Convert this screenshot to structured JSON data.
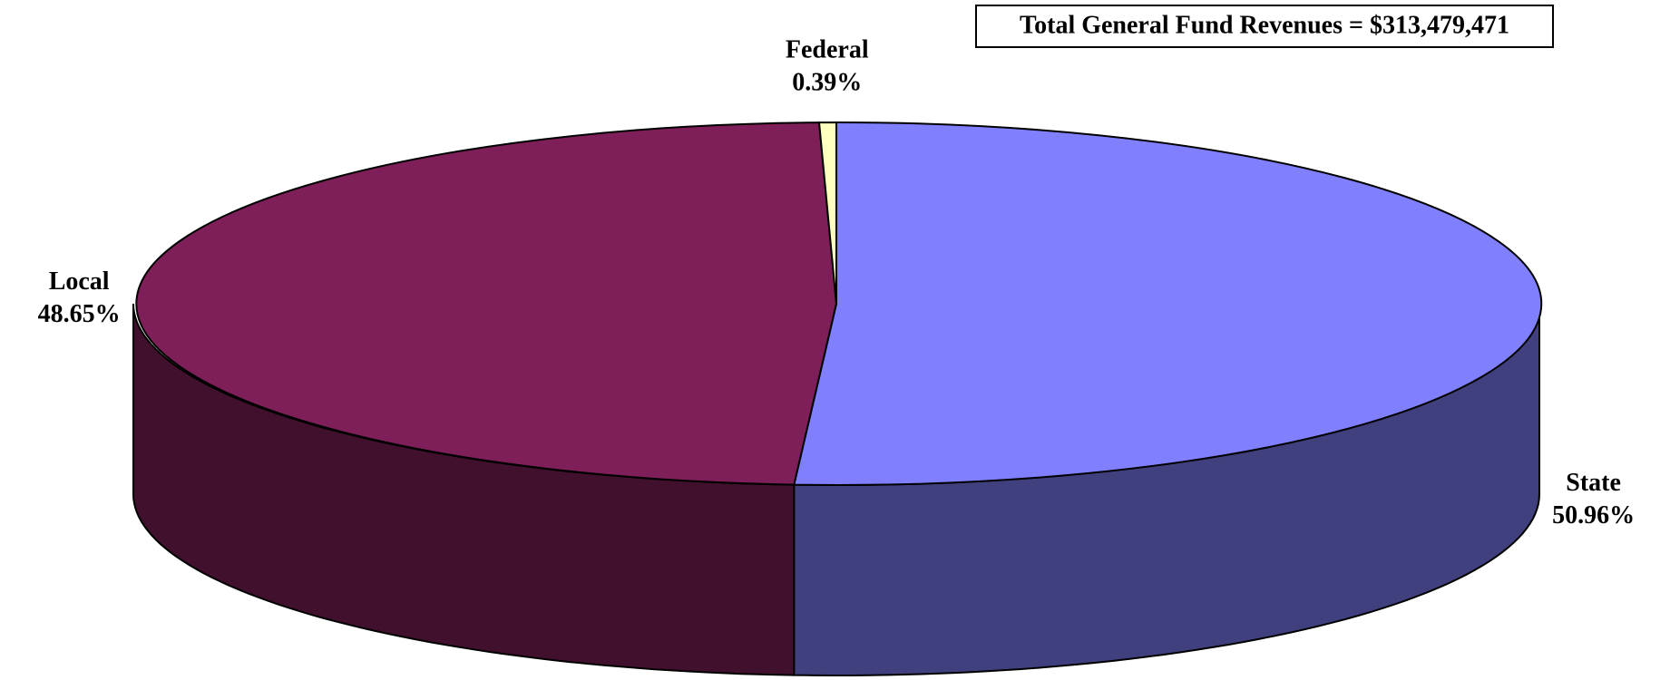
{
  "chart_data": {
    "type": "pie",
    "annotation": "Total General Fund Revenues = $313,479,471",
    "categories": [
      "State",
      "Local",
      "Federal"
    ],
    "values": [
      50.96,
      48.65,
      0.39
    ],
    "value_labels": [
      "50.96%",
      "48.65%",
      "0.39%"
    ],
    "colors": [
      "#8080ff",
      "#7f1f5a",
      "#ffffc0"
    ],
    "side_colors": [
      "#40407f",
      "#40102d",
      "#80805f"
    ]
  }
}
